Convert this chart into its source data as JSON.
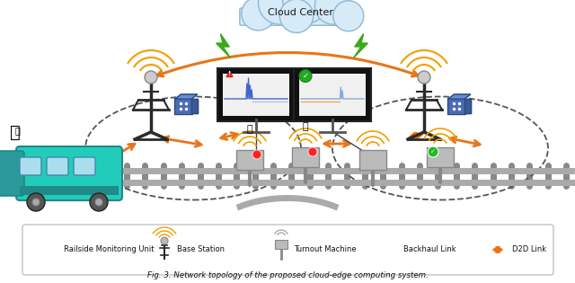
{
  "background_color": "#ffffff",
  "cloud_center_text": "Cloud Center",
  "orange_color": "#e8751a",
  "green_bolt_color": "#3aaa1a",
  "legend_labels": [
    "Railside Monitoring Unit",
    "Base Station",
    "Turnout Machine",
    "Backhaul Link",
    "D2D Link"
  ],
  "fig_caption": "Fig. 3. Network topology of the proposed cloud-edge computing system."
}
